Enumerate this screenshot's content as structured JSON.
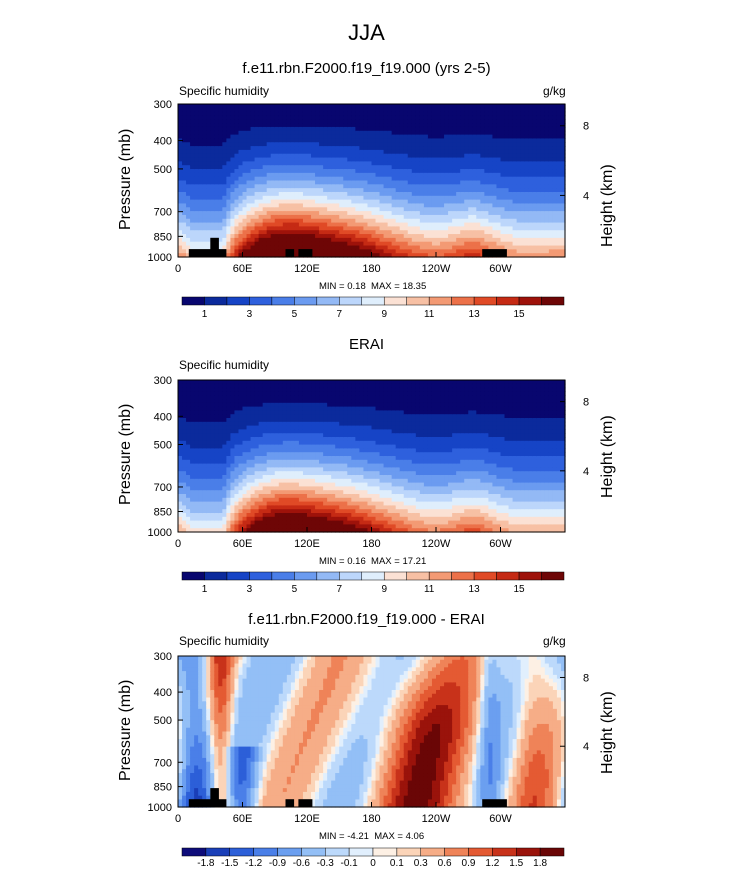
{
  "title": "JJA",
  "colors": {
    "abs_scale": [
      "#08066f",
      "#0b2a9c",
      "#1644c6",
      "#2e60dd",
      "#4a7ee8",
      "#6b9bf0",
      "#93b9f5",
      "#bcd6fb",
      "#dfeefc",
      "#fbe1d4",
      "#f7c0a4",
      "#f39a74",
      "#ec7149",
      "#e04a26",
      "#c52a14",
      "#9e120a",
      "#6e0606"
    ],
    "diff_scale": [
      "#0e0c7a",
      "#1a3fb8",
      "#2c5fd8",
      "#4a7fe8",
      "#6b9ff0",
      "#93bff6",
      "#bcd9fb",
      "#e1effd",
      "#fdf0e4",
      "#fbd4b8",
      "#f6ad87",
      "#ef8358",
      "#e45a33",
      "#c8321a",
      "#9a130b",
      "#6a0606"
    ],
    "topography": "#000000"
  },
  "chart_data": [
    {
      "type": "heatmap",
      "title": "f.e11.rbn.F2000.f19_f19.000 (yrs 2-5)",
      "left_label": "Specific humidity",
      "right_label": "g/kg",
      "ylabel": "Pressure (mb)",
      "ylabel_right": "Height (km)",
      "xticks": [
        "0",
        "60E",
        "120E",
        "180",
        "120W",
        "60W"
      ],
      "yticks": [
        "300",
        "400",
        "500",
        "700",
        "850",
        "1000"
      ],
      "yticks_right": [
        "8",
        "4"
      ],
      "xlim": [
        0,
        360
      ],
      "ylim": [
        1000,
        300
      ],
      "min_label": "MIN =",
      "min": "0.18",
      "max_label": "MAX =",
      "max": "18.35",
      "colorbar_labels": [
        "1",
        "3",
        "5",
        "7",
        "9",
        "11",
        "13",
        "15"
      ],
      "field": "model",
      "topography": true
    },
    {
      "type": "heatmap",
      "title": "ERAI",
      "left_label": "Specific humidity",
      "right_label": "",
      "ylabel": "Pressure (mb)",
      "ylabel_right": "Height (km)",
      "xticks": [
        "0",
        "60E",
        "120E",
        "180",
        "120W",
        "60W"
      ],
      "yticks": [
        "300",
        "400",
        "500",
        "700",
        "850",
        "1000"
      ],
      "yticks_right": [
        "8",
        "4"
      ],
      "xlim": [
        0,
        360
      ],
      "ylim": [
        1000,
        300
      ],
      "min_label": "MIN =",
      "min": "0.16",
      "max_label": "MAX =",
      "max": "17.21",
      "colorbar_labels": [
        "1",
        "3",
        "5",
        "7",
        "9",
        "11",
        "13",
        "15"
      ],
      "field": "obs",
      "topography": false
    },
    {
      "type": "heatmap",
      "title": "f.e11.rbn.F2000.f19_f19.000 - ERAI",
      "left_label": "Specific humidity",
      "right_label": "g/kg",
      "ylabel": "Pressure (mb)",
      "ylabel_right": "Height (km)",
      "xticks": [
        "0",
        "60E",
        "120E",
        "180",
        "120W",
        "60W"
      ],
      "yticks": [
        "300",
        "400",
        "500",
        "700",
        "850",
        "1000"
      ],
      "yticks_right": [
        "8",
        "4"
      ],
      "xlim": [
        0,
        360
      ],
      "ylim": [
        1000,
        300
      ],
      "min_label": "MIN =",
      "min": "-4.21",
      "max_label": "MAX =",
      "max": "4.06",
      "colorbar_labels": [
        "-1.8",
        "-1.5",
        "-1.2",
        "-0.9",
        "-0.6",
        "-0.3",
        "-0.1",
        "0",
        "0.1",
        "0.3",
        "0.6",
        "0.9",
        "1.2",
        "1.5",
        "1.8"
      ],
      "field": "diff",
      "topography": true
    }
  ]
}
